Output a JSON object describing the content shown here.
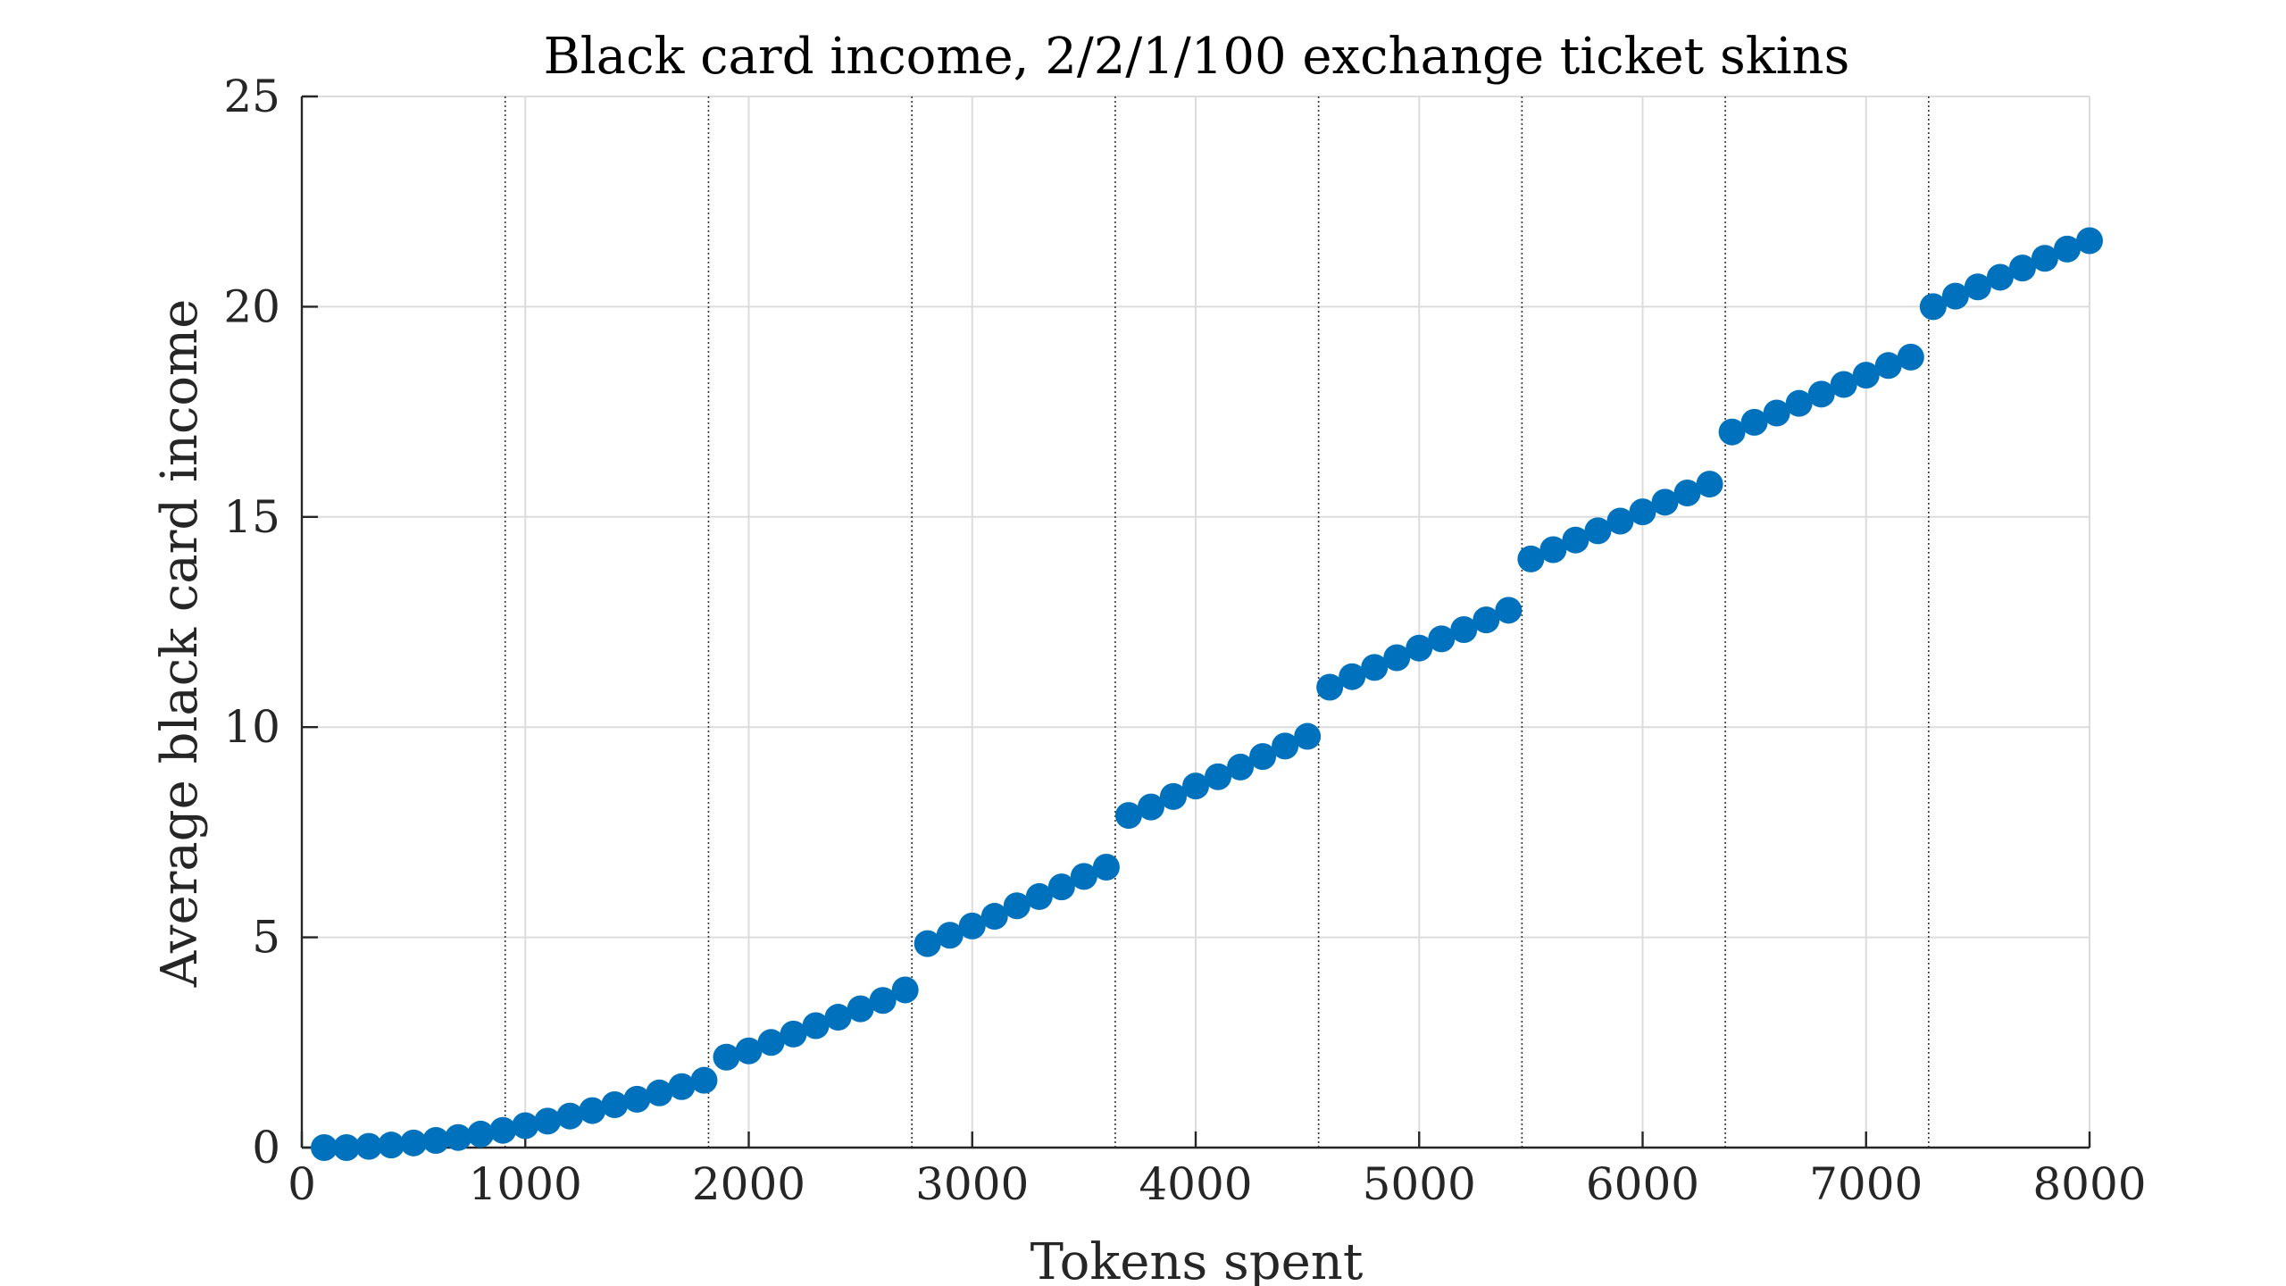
{
  "chart_data": {
    "type": "scatter",
    "title": "Black card income, 2/2/1/100 exchange ticket skins",
    "xlabel": "Tokens spent",
    "ylabel": "Average black card income",
    "xlim": [
      0,
      8000
    ],
    "ylim": [
      0,
      25
    ],
    "xticks": [
      0,
      1000,
      2000,
      3000,
      4000,
      5000,
      6000,
      7000,
      8000
    ],
    "yticks": [
      0,
      5,
      10,
      15,
      20,
      25
    ],
    "grid": true,
    "marker_color": "#0072BD",
    "reference_lines_x": [
      910,
      1820,
      2730,
      3640,
      4550,
      5460,
      6370,
      7280
    ],
    "series": [
      {
        "x": [
          100,
          200,
          300,
          400,
          500,
          600,
          700,
          800,
          900,
          1000,
          1100,
          1200,
          1300,
          1400,
          1500,
          1600,
          1700,
          1800,
          1900,
          2000,
          2100,
          2200,
          2300,
          2400,
          2500,
          2600,
          2700,
          2800,
          2900,
          3000,
          3100,
          3200,
          3300,
          3400,
          3500,
          3600,
          3700,
          3800,
          3900,
          4000,
          4100,
          4200,
          4300,
          4400,
          4500,
          4600,
          4700,
          4800,
          4900,
          5000,
          5100,
          5200,
          5300,
          5400,
          5500,
          5600,
          5700,
          5800,
          5900,
          6000,
          6100,
          6200,
          6300,
          6400,
          6500,
          6600,
          6700,
          6800,
          6900,
          7000,
          7100,
          7200,
          7300,
          7400,
          7500,
          7600,
          7700,
          7800,
          7900,
          8000
        ],
        "y": [
          0.0,
          0.0,
          0.03,
          0.06,
          0.11,
          0.17,
          0.24,
          0.32,
          0.41,
          0.52,
          0.63,
          0.75,
          0.88,
          1.02,
          1.15,
          1.3,
          1.45,
          1.6,
          2.15,
          2.3,
          2.5,
          2.7,
          2.9,
          3.1,
          3.3,
          3.5,
          3.75,
          4.85,
          5.05,
          5.27,
          5.5,
          5.75,
          5.97,
          6.2,
          6.45,
          6.67,
          7.9,
          8.1,
          8.35,
          8.6,
          8.82,
          9.05,
          9.3,
          9.55,
          9.78,
          10.95,
          11.2,
          11.42,
          11.65,
          11.88,
          12.1,
          12.32,
          12.55,
          12.78,
          14.0,
          14.22,
          14.45,
          14.67,
          14.9,
          15.12,
          15.35,
          15.57,
          15.78,
          17.02,
          17.25,
          17.47,
          17.7,
          17.92,
          18.15,
          18.37,
          18.6,
          18.8,
          20.0,
          20.25,
          20.47,
          20.7,
          20.92,
          21.15,
          21.37,
          21.57
        ]
      }
    ]
  }
}
